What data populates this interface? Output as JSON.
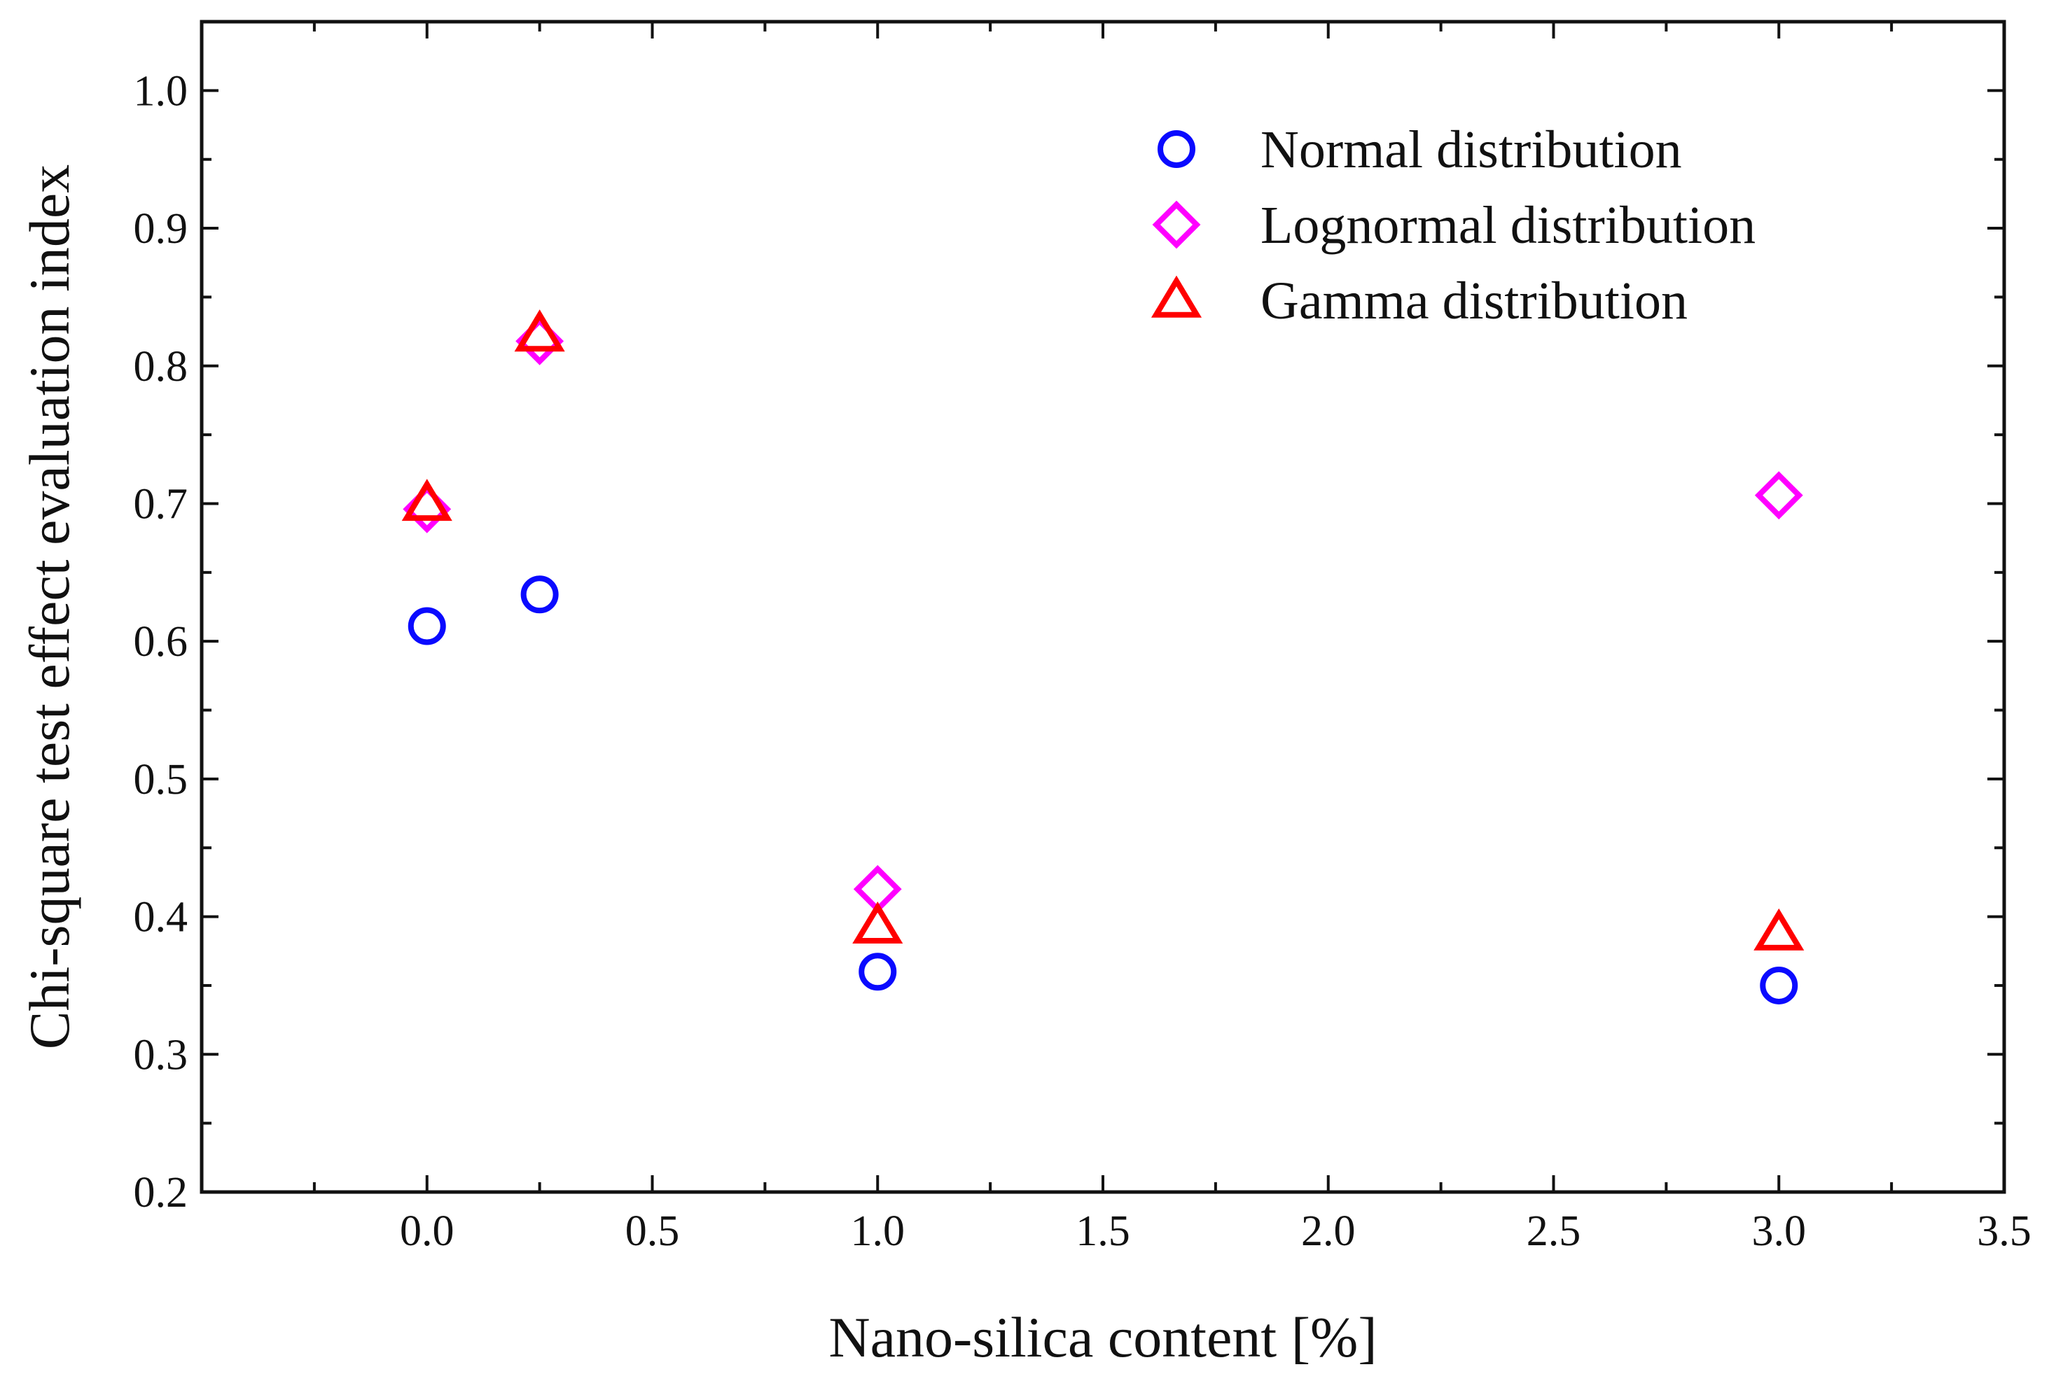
{
  "chart_data": {
    "type": "scatter",
    "title": "",
    "xlabel": "Nano-silica content [%]",
    "ylabel": "Chi-square test effect evaluation index",
    "xlim": [
      -0.5,
      3.5
    ],
    "ylim": [
      0.2,
      1.05
    ],
    "xticks": [
      0.0,
      0.5,
      1.0,
      1.5,
      2.0,
      2.5,
      3.0,
      3.5
    ],
    "xtick_labels": [
      "0.0",
      "0.5",
      "1.0",
      "1.5",
      "2.0",
      "2.5",
      "3.0",
      "3.5"
    ],
    "yticks": [
      0.2,
      0.3,
      0.4,
      0.5,
      0.6,
      0.7,
      0.8,
      0.9,
      1.0
    ],
    "ytick_labels": [
      "0.2",
      "0.3",
      "0.4",
      "0.5",
      "0.6",
      "0.7",
      "0.8",
      "0.9",
      "1.0"
    ],
    "grid": false,
    "legend_position": "top-right",
    "series": [
      {
        "name": "Normal distribution",
        "marker": "circle",
        "color": "#0a0aff",
        "x": [
          0,
          0.25,
          1,
          3
        ],
        "y": [
          0.611,
          0.634,
          0.36,
          0.35
        ]
      },
      {
        "name": "Lognormal distribution",
        "marker": "diamond",
        "color": "#ff00ff",
        "x": [
          0,
          0.25,
          1,
          3
        ],
        "y": [
          0.696,
          0.818,
          0.42,
          0.706
        ]
      },
      {
        "name": "Gamma distribution",
        "marker": "triangle",
        "color": "#ff0000",
        "x": [
          0,
          0.25,
          1,
          3
        ],
        "y": [
          0.7,
          0.823,
          0.393,
          0.388
        ]
      }
    ]
  }
}
